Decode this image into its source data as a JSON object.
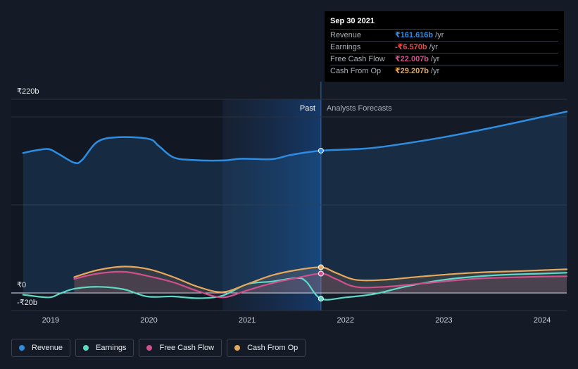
{
  "chart_data": {
    "type": "area",
    "x_unit": "year",
    "xlim": [
      2018.6,
      2024.25
    ],
    "ylim": [
      -20,
      220
    ],
    "x_ticks": [
      "2019",
      "2020",
      "2021",
      "2022",
      "2023",
      "2024"
    ],
    "x_tick_values": [
      2019,
      2020,
      2021,
      2022,
      2023,
      2024
    ],
    "y_labels": [
      {
        "value": 220,
        "label": "₹220b"
      },
      {
        "value": 0,
        "label": "₹0"
      },
      {
        "value": -20,
        "label": "-₹20b"
      }
    ],
    "regions": {
      "past_label": "Past",
      "forecast_label": "Analysts Forecasts",
      "past_start": 2020.75,
      "divider": 2021.75
    },
    "series": [
      {
        "name": "Revenue",
        "color": "#2e8de0",
        "fill": true,
        "points": [
          [
            2018.72,
            159
          ],
          [
            2018.85,
            162
          ],
          [
            2018.98,
            163.5
          ],
          [
            2019.08,
            158
          ],
          [
            2019.24,
            148
          ],
          [
            2019.32,
            151
          ],
          [
            2019.48,
            172
          ],
          [
            2019.7,
            177
          ],
          [
            2020.0,
            175
          ],
          [
            2020.1,
            167
          ],
          [
            2020.25,
            154
          ],
          [
            2020.45,
            151
          ],
          [
            2020.75,
            150.5
          ],
          [
            2020.95,
            152.5
          ],
          [
            2021.25,
            152
          ],
          [
            2021.45,
            157
          ],
          [
            2021.75,
            161.6
          ],
          [
            2022.2,
            164
          ],
          [
            2022.5,
            168
          ],
          [
            2023.0,
            177
          ],
          [
            2023.5,
            188
          ],
          [
            2024.0,
            200
          ],
          [
            2024.25,
            206
          ]
        ]
      },
      {
        "name": "Earnings",
        "color": "#5ddac6",
        "fill": false,
        "points": [
          [
            2018.72,
            -2
          ],
          [
            2018.98,
            -5
          ],
          [
            2019.1,
            -0.5
          ],
          [
            2019.25,
            5
          ],
          [
            2019.5,
            7
          ],
          [
            2019.75,
            4
          ],
          [
            2019.98,
            -4
          ],
          [
            2020.25,
            -4
          ],
          [
            2020.5,
            -6
          ],
          [
            2020.75,
            -3
          ],
          [
            2021.0,
            10
          ],
          [
            2021.25,
            13
          ],
          [
            2021.5,
            17
          ],
          [
            2021.6,
            13
          ],
          [
            2021.75,
            -6.57
          ],
          [
            2022.0,
            -5
          ],
          [
            2022.3,
            -1
          ],
          [
            2022.6,
            7
          ],
          [
            2023.0,
            15
          ],
          [
            2023.5,
            20
          ],
          [
            2024.0,
            22
          ],
          [
            2024.25,
            23
          ]
        ]
      },
      {
        "name": "Free Cash Flow",
        "color": "#d04f8c",
        "fill": true,
        "points": [
          [
            2019.24,
            16
          ],
          [
            2019.48,
            22
          ],
          [
            2019.75,
            24
          ],
          [
            2020.0,
            19
          ],
          [
            2020.25,
            12
          ],
          [
            2020.5,
            2
          ],
          [
            2020.75,
            -5
          ],
          [
            2021.0,
            3
          ],
          [
            2021.25,
            11
          ],
          [
            2021.5,
            17
          ],
          [
            2021.75,
            22
          ],
          [
            2021.9,
            16
          ],
          [
            2022.1,
            7
          ],
          [
            2022.4,
            7
          ],
          [
            2022.8,
            11
          ],
          [
            2023.3,
            16
          ],
          [
            2023.8,
            18
          ],
          [
            2024.25,
            19
          ]
        ]
      },
      {
        "name": "Cash From Op",
        "color": "#e8a85c",
        "fill": true,
        "points": [
          [
            2019.24,
            18
          ],
          [
            2019.48,
            26
          ],
          [
            2019.75,
            30
          ],
          [
            2020.0,
            27
          ],
          [
            2020.25,
            18
          ],
          [
            2020.5,
            7
          ],
          [
            2020.75,
            1
          ],
          [
            2021.0,
            10
          ],
          [
            2021.25,
            20
          ],
          [
            2021.5,
            26
          ],
          [
            2021.75,
            29.2
          ],
          [
            2021.9,
            23
          ],
          [
            2022.1,
            15
          ],
          [
            2022.4,
            15
          ],
          [
            2022.8,
            19
          ],
          [
            2023.3,
            23
          ],
          [
            2023.8,
            25
          ],
          [
            2024.25,
            27
          ]
        ]
      }
    ],
    "marker_x": 2021.75
  },
  "tooltip": {
    "date": "Sep 30 2021",
    "rows": [
      {
        "name": "Revenue",
        "value": "₹161.616b",
        "unit": "/yr",
        "color": "#2e8de0"
      },
      {
        "name": "Earnings",
        "value": "-₹6.570b",
        "unit": "/yr",
        "color": "#e84a4a"
      },
      {
        "name": "Free Cash Flow",
        "value": "₹22.007b",
        "unit": "/yr",
        "color": "#d04f8c"
      },
      {
        "name": "Cash From Op",
        "value": "₹29.207b",
        "unit": "/yr",
        "color": "#e8a85c"
      }
    ]
  },
  "legend": [
    {
      "label": "Revenue",
      "color": "#2e8de0"
    },
    {
      "label": "Earnings",
      "color": "#5ddac6"
    },
    {
      "label": "Free Cash Flow",
      "color": "#d04f8c"
    },
    {
      "label": "Cash From Op",
      "color": "#e8a85c"
    }
  ]
}
